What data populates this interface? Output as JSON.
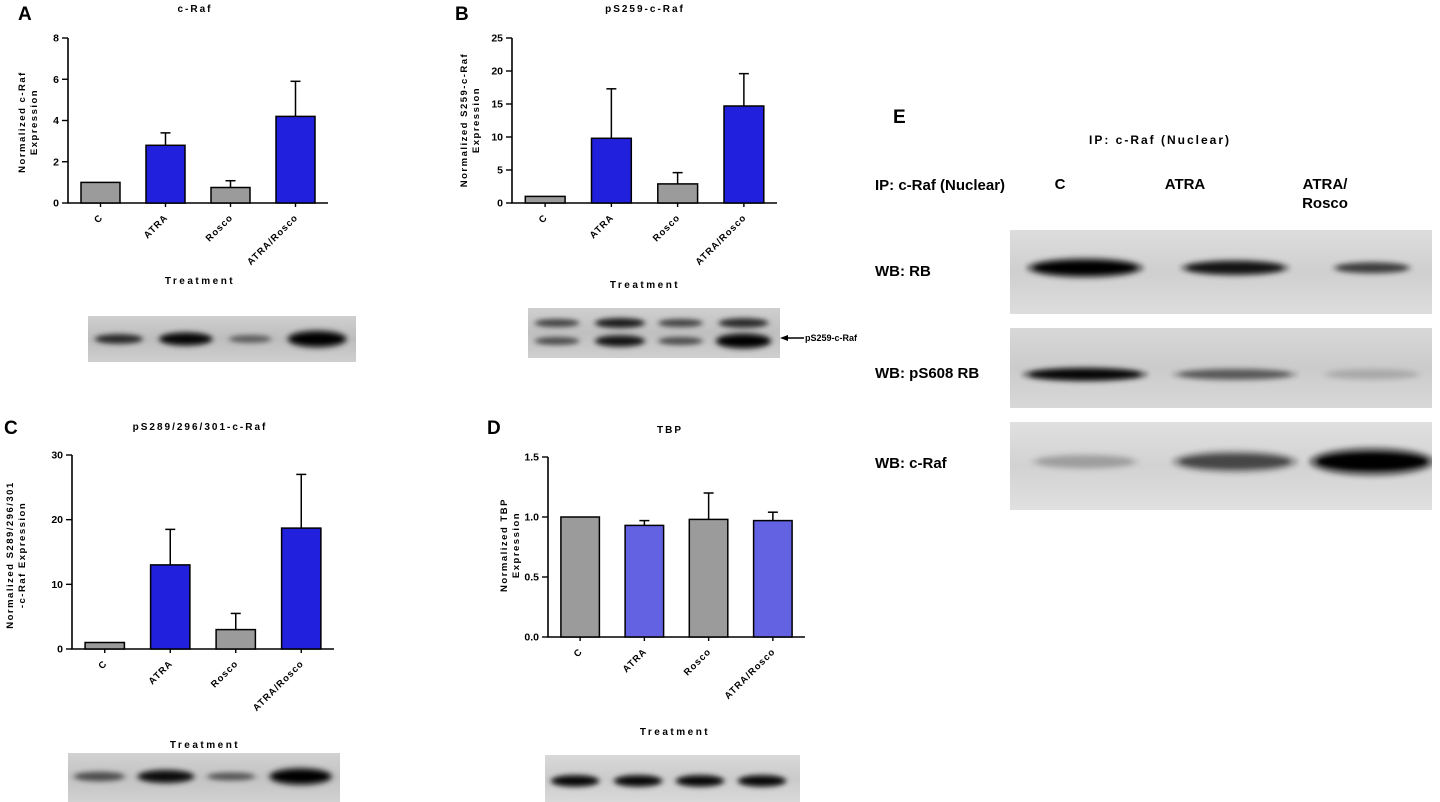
{
  "figure": {
    "background": "#ffffff"
  },
  "panels": {
    "a_label": "A",
    "b_label": "B",
    "c_label": "C",
    "d_label": "D",
    "e_label": "E"
  },
  "chart_data": [
    {
      "type": "bar",
      "panel": "A",
      "title": "c-Raf",
      "ylabel": "Normalized c-Raf\nExpression",
      "xlabel": "Treatment",
      "categories": [
        "C",
        "ATRA",
        "Rosco",
        "ATRA/Rosco"
      ],
      "values": [
        1.0,
        2.8,
        0.75,
        4.2
      ],
      "errors": [
        0,
        0.6,
        0.33,
        1.7
      ],
      "bar_colors": [
        "#9b9b9b",
        "#2020dd",
        "#9b9b9b",
        "#2020dd"
      ],
      "ylim": [
        0,
        8
      ],
      "yticks": [
        "0",
        "2",
        "4",
        "6",
        "8"
      ],
      "grid": false,
      "legend": "none"
    },
    {
      "type": "bar",
      "panel": "B",
      "title": "pS259-c-Raf",
      "ylabel": "Normalized S259-c-Raf\nExpression",
      "xlabel": "Treatment",
      "categories": [
        "C",
        "ATRA",
        "Rosco",
        "ATRA/Rosco"
      ],
      "values": [
        1.0,
        9.8,
        2.9,
        14.7
      ],
      "errors": [
        0,
        7.5,
        1.7,
        4.9
      ],
      "bar_colors": [
        "#9b9b9b",
        "#2020dd",
        "#9b9b9b",
        "#2020dd"
      ],
      "ylim": [
        0,
        25
      ],
      "yticks": [
        "0",
        "5",
        "10",
        "15",
        "20",
        "25"
      ],
      "grid": false,
      "legend": "none"
    },
    {
      "type": "bar",
      "panel": "C",
      "title": "pS289/296/301-c-Raf",
      "ylabel": "Normalized S289/296/301\n-c-Raf Expression",
      "xlabel": "Treatment",
      "categories": [
        "C",
        "ATRA",
        "Rosco",
        "ATRA/Rosco"
      ],
      "values": [
        1.0,
        13.0,
        3.0,
        18.7
      ],
      "errors": [
        0,
        5.5,
        2.5,
        8.3
      ],
      "bar_colors": [
        "#9b9b9b",
        "#2020dd",
        "#9b9b9b",
        "#2020dd"
      ],
      "ylim": [
        0,
        30
      ],
      "yticks": [
        "0",
        "10",
        "20",
        "30"
      ],
      "grid": false,
      "legend": "none"
    },
    {
      "type": "bar",
      "panel": "D",
      "title": "TBP",
      "ylabel": "Normalized TBP\nExpression",
      "xlabel": "Treatment",
      "categories": [
        "C",
        "ATRA",
        "Rosco",
        "ATRA/Rosco"
      ],
      "values": [
        1.0,
        0.93,
        0.98,
        0.97
      ],
      "errors": [
        0,
        0.04,
        0.22,
        0.07
      ],
      "bar_colors": [
        "#9b9b9b",
        "#6262e3",
        "#9b9b9b",
        "#6262e3"
      ],
      "ylim": [
        0,
        1.5
      ],
      "yticks": [
        "0.0",
        "0.5",
        "1.0",
        "1.5"
      ],
      "grid": false,
      "legend": "none"
    }
  ],
  "annotations": {
    "b_blot_band_label": "pS259-c-Raf"
  },
  "panel_e": {
    "title": "IP: c-Raf (Nuclear)",
    "row_header": "IP: c-Raf (Nuclear)",
    "col_headers": [
      "C",
      "ATRA",
      "ATRA/\nRosco"
    ],
    "rows": [
      {
        "label": "WB: RB"
      },
      {
        "label": "WB: pS608 RB"
      },
      {
        "label": "WB: c-Raf"
      }
    ]
  },
  "blots": {
    "A": {
      "bg": "#cfcfcf",
      "bg2": "#bdbdbd",
      "rows": [
        {
          "y": 0.5,
          "bands": [
            {
              "x": 0.115,
              "w": 0.19,
              "h": 6,
              "i": 0.7
            },
            {
              "x": 0.365,
              "w": 0.21,
              "h": 8,
              "i": 0.95
            },
            {
              "x": 0.605,
              "w": 0.17,
              "h": 5,
              "i": 0.4
            },
            {
              "x": 0.855,
              "w": 0.23,
              "h": 10,
              "i": 1.0
            }
          ]
        }
      ]
    },
    "B": {
      "bg": "#cfcfcf",
      "bg2": "#bfbfbf",
      "rows": [
        {
          "y": 0.3,
          "bands": [
            {
              "x": 0.115,
              "w": 0.19,
              "h": 5,
              "i": 0.55
            },
            {
              "x": 0.365,
              "w": 0.21,
              "h": 6,
              "i": 0.8
            },
            {
              "x": 0.605,
              "w": 0.19,
              "h": 5,
              "i": 0.55
            },
            {
              "x": 0.855,
              "w": 0.21,
              "h": 6,
              "i": 0.7
            }
          ]
        },
        {
          "y": 0.66,
          "bands": [
            {
              "x": 0.115,
              "w": 0.19,
              "h": 5,
              "i": 0.5
            },
            {
              "x": 0.365,
              "w": 0.21,
              "h": 7,
              "i": 0.85
            },
            {
              "x": 0.605,
              "w": 0.19,
              "h": 5,
              "i": 0.5
            },
            {
              "x": 0.855,
              "w": 0.23,
              "h": 9,
              "i": 1.0
            }
          ]
        }
      ]
    },
    "C": {
      "bg": "#d2d2d2",
      "bg2": "#c2c2c2",
      "rows": [
        {
          "y": 0.48,
          "bands": [
            {
              "x": 0.115,
              "w": 0.2,
              "h": 6,
              "i": 0.5
            },
            {
              "x": 0.36,
              "w": 0.22,
              "h": 8,
              "i": 0.9
            },
            {
              "x": 0.6,
              "w": 0.19,
              "h": 5,
              "i": 0.45
            },
            {
              "x": 0.855,
              "w": 0.24,
              "h": 10,
              "i": 1.0
            }
          ]
        }
      ]
    },
    "D": {
      "bg": "#d9d9d9",
      "bg2": "#cbcbcb",
      "rows": [
        {
          "y": 0.55,
          "bands": [
            {
              "x": 0.118,
              "w": 0.2,
              "h": 7,
              "i": 0.95
            },
            {
              "x": 0.365,
              "w": 0.2,
              "h": 7,
              "i": 0.95
            },
            {
              "x": 0.608,
              "w": 0.2,
              "h": 7,
              "i": 0.95
            },
            {
              "x": 0.851,
              "w": 0.2,
              "h": 7,
              "i": 0.95
            }
          ]
        }
      ]
    },
    "E_RB": {
      "bg": "#dddddd",
      "bg2": "#cfcfcf",
      "rows": [
        {
          "y": 0.45,
          "bands": [
            {
              "x": 0.178,
              "w": 0.28,
              "h": 11,
              "i": 1.0
            },
            {
              "x": 0.533,
              "w": 0.26,
              "h": 9,
              "i": 0.85
            },
            {
              "x": 0.858,
              "w": 0.19,
              "h": 7,
              "i": 0.6
            }
          ]
        }
      ]
    },
    "E_pS608": {
      "bg": "#d8d8d8",
      "bg2": "#cbcbcb",
      "rows": [
        {
          "y": 0.58,
          "bands": [
            {
              "x": 0.178,
              "w": 0.3,
              "h": 8,
              "i": 0.95
            },
            {
              "x": 0.533,
              "w": 0.3,
              "h": 7,
              "i": 0.45
            },
            {
              "x": 0.858,
              "w": 0.24,
              "h": 7,
              "i": 0.12
            }
          ]
        }
      ]
    },
    "E_cRaf": {
      "bg": "#e0e0e0",
      "bg2": "#d2d2d2",
      "rows": [
        {
          "y": 0.45,
          "bands": [
            {
              "x": 0.178,
              "w": 0.26,
              "h": 9,
              "i": 0.18
            },
            {
              "x": 0.533,
              "w": 0.3,
              "h": 12,
              "i": 0.55
            },
            {
              "x": 0.858,
              "w": 0.3,
              "h": 15,
              "i": 1.0
            }
          ]
        }
      ]
    }
  }
}
